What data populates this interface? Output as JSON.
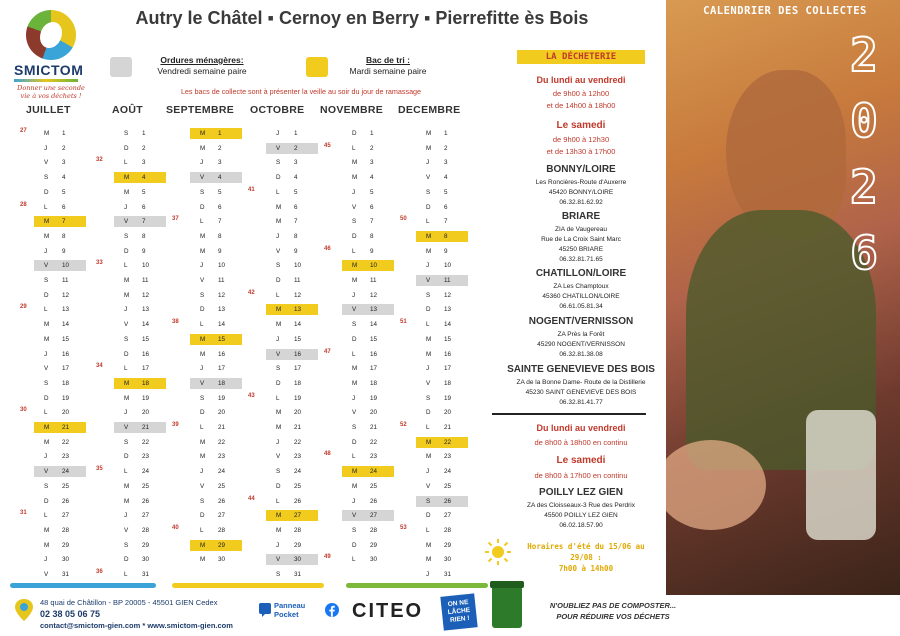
{
  "logo": {
    "name": "SMICTOM",
    "slogan": "Donner une seconde vie à vos déchets !"
  },
  "title": "Autry le Châtel  ▪  Cernoy en Berry  ▪  Pierrefitte ès Bois",
  "legend": {
    "om_title": "Ordures ménagères:",
    "om_day": "Vendredi semaine paire",
    "tri_title": "Bac de tri :",
    "tri_day": "Mardi semaine paire",
    "om_color": "#d5d5d5",
    "tri_color": "#f1cb1d"
  },
  "notice": "Les bacs de collecte sont à présenter la veille au soir du jour de ramassage",
  "months": [
    "JUILLET",
    "AOÛT",
    "SEPTEMBRE",
    "OCTOBRE",
    "NOVEMBRE",
    "DECEMBRE"
  ],
  "calendar": [
    {
      "days": [
        [
          "M",
          "1"
        ],
        [
          "J",
          "2"
        ],
        [
          "V",
          "3"
        ],
        [
          "S",
          "4"
        ],
        [
          "D",
          "5"
        ],
        [
          "L",
          "6"
        ],
        [
          "M",
          "7"
        ],
        [
          "M",
          "8"
        ],
        [
          "J",
          "9"
        ],
        [
          "V",
          "10"
        ],
        [
          "S",
          "11"
        ],
        [
          "D",
          "12"
        ],
        [
          "L",
          "13"
        ],
        [
          "M",
          "14"
        ],
        [
          "M",
          "15"
        ],
        [
          "J",
          "16"
        ],
        [
          "V",
          "17"
        ],
        [
          "S",
          "18"
        ],
        [
          "D",
          "19"
        ],
        [
          "L",
          "20"
        ],
        [
          "M",
          "21"
        ],
        [
          "M",
          "22"
        ],
        [
          "J",
          "23"
        ],
        [
          "V",
          "24"
        ],
        [
          "S",
          "25"
        ],
        [
          "D",
          "26"
        ],
        [
          "L",
          "27"
        ],
        [
          "M",
          "28"
        ],
        [
          "M",
          "29"
        ],
        [
          "J",
          "30"
        ],
        [
          "V",
          "31"
        ]
      ],
      "yellow": [
        "7",
        "21"
      ],
      "grey": [
        "10",
        "24"
      ],
      "weeks": [
        [
          "1",
          "27"
        ],
        [
          "6",
          "28"
        ],
        [
          "13",
          "29"
        ],
        [
          "20",
          "30"
        ],
        [
          "27",
          "31"
        ]
      ]
    },
    {
      "days": [
        [
          "S",
          "1"
        ],
        [
          "D",
          "2"
        ],
        [
          "L",
          "3"
        ],
        [
          "M",
          "4"
        ],
        [
          "M",
          "5"
        ],
        [
          "J",
          "6"
        ],
        [
          "V",
          "7"
        ],
        [
          "S",
          "8"
        ],
        [
          "D",
          "9"
        ],
        [
          "L",
          "10"
        ],
        [
          "M",
          "11"
        ],
        [
          "M",
          "12"
        ],
        [
          "J",
          "13"
        ],
        [
          "V",
          "14"
        ],
        [
          "S",
          "15"
        ],
        [
          "D",
          "16"
        ],
        [
          "L",
          "17"
        ],
        [
          "M",
          "18"
        ],
        [
          "M",
          "19"
        ],
        [
          "J",
          "20"
        ],
        [
          "V",
          "21"
        ],
        [
          "S",
          "22"
        ],
        [
          "D",
          "23"
        ],
        [
          "L",
          "24"
        ],
        [
          "M",
          "25"
        ],
        [
          "M",
          "26"
        ],
        [
          "J",
          "27"
        ],
        [
          "V",
          "28"
        ],
        [
          "S",
          "29"
        ],
        [
          "D",
          "30"
        ],
        [
          "L",
          "31"
        ]
      ],
      "yellow": [
        "4",
        "18"
      ],
      "grey": [
        "7",
        "21"
      ],
      "weeks": [
        [
          "3",
          "32"
        ],
        [
          "10",
          "33"
        ],
        [
          "17",
          "34"
        ],
        [
          "24",
          "35"
        ],
        [
          "31",
          "36"
        ]
      ]
    },
    {
      "days": [
        [
          "M",
          "1"
        ],
        [
          "M",
          "2"
        ],
        [
          "J",
          "3"
        ],
        [
          "V",
          "4"
        ],
        [
          "S",
          "5"
        ],
        [
          "D",
          "6"
        ],
        [
          "L",
          "7"
        ],
        [
          "M",
          "8"
        ],
        [
          "M",
          "9"
        ],
        [
          "J",
          "10"
        ],
        [
          "V",
          "11"
        ],
        [
          "S",
          "12"
        ],
        [
          "D",
          "13"
        ],
        [
          "L",
          "14"
        ],
        [
          "M",
          "15"
        ],
        [
          "M",
          "16"
        ],
        [
          "J",
          "17"
        ],
        [
          "V",
          "18"
        ],
        [
          "S",
          "19"
        ],
        [
          "D",
          "20"
        ],
        [
          "L",
          "21"
        ],
        [
          "M",
          "22"
        ],
        [
          "M",
          "23"
        ],
        [
          "J",
          "24"
        ],
        [
          "V",
          "25"
        ],
        [
          "S",
          "26"
        ],
        [
          "D",
          "27"
        ],
        [
          "L",
          "28"
        ],
        [
          "M",
          "29"
        ],
        [
          "M",
          "30"
        ]
      ],
      "yellow": [
        "1",
        "15",
        "29"
      ],
      "grey": [
        "4",
        "18"
      ],
      "weeks": [
        [
          "7",
          "37"
        ],
        [
          "14",
          "38"
        ],
        [
          "21",
          "39"
        ],
        [
          "28",
          "40"
        ]
      ]
    },
    {
      "days": [
        [
          "J",
          "1"
        ],
        [
          "V",
          "2"
        ],
        [
          "S",
          "3"
        ],
        [
          "D",
          "4"
        ],
        [
          "L",
          "5"
        ],
        [
          "M",
          "6"
        ],
        [
          "M",
          "7"
        ],
        [
          "J",
          "8"
        ],
        [
          "V",
          "9"
        ],
        [
          "S",
          "10"
        ],
        [
          "D",
          "11"
        ],
        [
          "L",
          "12"
        ],
        [
          "M",
          "13"
        ],
        [
          "M",
          "14"
        ],
        [
          "J",
          "15"
        ],
        [
          "V",
          "16"
        ],
        [
          "S",
          "17"
        ],
        [
          "D",
          "18"
        ],
        [
          "L",
          "19"
        ],
        [
          "M",
          "20"
        ],
        [
          "M",
          "21"
        ],
        [
          "J",
          "22"
        ],
        [
          "V",
          "23"
        ],
        [
          "S",
          "24"
        ],
        [
          "D",
          "25"
        ],
        [
          "L",
          "26"
        ],
        [
          "M",
          "27"
        ],
        [
          "M",
          "28"
        ],
        [
          "J",
          "29"
        ],
        [
          "V",
          "30"
        ],
        [
          "S",
          "31"
        ]
      ],
      "yellow": [
        "13",
        "27"
      ],
      "grey": [
        "2",
        "16",
        "30"
      ],
      "weeks": [
        [
          "5",
          "41"
        ],
        [
          "12",
          "42"
        ],
        [
          "19",
          "43"
        ],
        [
          "26",
          "44"
        ]
      ]
    },
    {
      "days": [
        [
          "D",
          "1"
        ],
        [
          "L",
          "2"
        ],
        [
          "M",
          "3"
        ],
        [
          "M",
          "4"
        ],
        [
          "J",
          "5"
        ],
        [
          "V",
          "6"
        ],
        [
          "S",
          "7"
        ],
        [
          "D",
          "8"
        ],
        [
          "L",
          "9"
        ],
        [
          "M",
          "10"
        ],
        [
          "M",
          "11"
        ],
        [
          "J",
          "12"
        ],
        [
          "V",
          "13"
        ],
        [
          "S",
          "14"
        ],
        [
          "D",
          "15"
        ],
        [
          "L",
          "16"
        ],
        [
          "M",
          "17"
        ],
        [
          "M",
          "18"
        ],
        [
          "J",
          "19"
        ],
        [
          "V",
          "20"
        ],
        [
          "S",
          "21"
        ],
        [
          "D",
          "22"
        ],
        [
          "L",
          "23"
        ],
        [
          "M",
          "24"
        ],
        [
          "M",
          "25"
        ],
        [
          "J",
          "26"
        ],
        [
          "V",
          "27"
        ],
        [
          "S",
          "28"
        ],
        [
          "D",
          "29"
        ],
        [
          "L",
          "30"
        ]
      ],
      "yellow": [
        "10",
        "24"
      ],
      "grey": [
        "13",
        "27"
      ],
      "weeks": [
        [
          "2",
          "45"
        ],
        [
          "9",
          "46"
        ],
        [
          "16",
          "47"
        ],
        [
          "23",
          "48"
        ],
        [
          "30",
          "49"
        ]
      ]
    },
    {
      "days": [
        [
          "M",
          "1"
        ],
        [
          "M",
          "2"
        ],
        [
          "J",
          "3"
        ],
        [
          "V",
          "4"
        ],
        [
          "S",
          "5"
        ],
        [
          "D",
          "6"
        ],
        [
          "L",
          "7"
        ],
        [
          "M",
          "8"
        ],
        [
          "M",
          "9"
        ],
        [
          "J",
          "10"
        ],
        [
          "V",
          "11"
        ],
        [
          "S",
          "12"
        ],
        [
          "D",
          "13"
        ],
        [
          "L",
          "14"
        ],
        [
          "M",
          "15"
        ],
        [
          "M",
          "16"
        ],
        [
          "J",
          "17"
        ],
        [
          "V",
          "18"
        ],
        [
          "S",
          "19"
        ],
        [
          "D",
          "20"
        ],
        [
          "L",
          "21"
        ],
        [
          "M",
          "22"
        ],
        [
          "M",
          "23"
        ],
        [
          "J",
          "24"
        ],
        [
          "V",
          "25"
        ],
        [
          "S",
          "26"
        ],
        [
          "D",
          "27"
        ],
        [
          "L",
          "28"
        ],
        [
          "M",
          "29"
        ],
        [
          "M",
          "30"
        ],
        [
          "J",
          "31"
        ]
      ],
      "yellow": [
        "8",
        "22"
      ],
      "grey": [
        "11",
        "26"
      ],
      "weeks": [
        [
          "7",
          "50"
        ],
        [
          "14",
          "51"
        ],
        [
          "21",
          "52"
        ],
        [
          "28",
          "53"
        ]
      ]
    }
  ],
  "dechetterie": {
    "tag": "LA DÉCHETERIE",
    "weekday": "Du lundi au vendredi",
    "weekday_hours_1": "de 9h00 à 12h00",
    "weekday_hours_2": "et de 14h00 à 18h00",
    "saturday": "Le samedi",
    "saturday_hours_1": "de 9h00 à 12h30",
    "saturday_hours_2": "et de 13h30 à 17h00",
    "sites": [
      {
        "name": "BONNY/LOIRE",
        "l1": "Les Roncières-Route d'Auxerre",
        "l2": "45420 BONNY/LOIRE",
        "l3": "06.32.81.62.92"
      },
      {
        "name": "BRIARE",
        "l1": "ZIA de Vaugereau",
        "l2": "Rue de La Croix Saint Marc",
        "l3": "45250 BRIARE",
        "l4": "06.32.81.71.65"
      },
      {
        "name": "CHATILLON/LOIRE",
        "l1": "ZA Les Champtoux",
        "l2": "45360 CHATILLON/LOIRE",
        "l3": "06.61.05.81.34"
      },
      {
        "name": "NOGENT/VERNISSON",
        "l1": "ZA Près la Forêt",
        "l2": "45290 NOGENT/VERNISSON",
        "l3": "06.32.81.38.08"
      },
      {
        "name": "SAINTE GENEVIEVE DES BOIS",
        "l1": "ZA de la Bonne Dame- Route de la Distillerie",
        "l2": "45230 SAINT GENEVIEVE DES BOIS",
        "l3": "06.32.81.41.77"
      }
    ],
    "poilly": {
      "weekday": "Du lundi au vendredi",
      "weekday_hours": "de 8h00 à 18h00 en continu",
      "saturday": "Le samedi",
      "saturday_hours": "de 8h00 à 17h00 en continu",
      "name": "POILLY LEZ GIEN",
      "l1": "ZA des Cloisseaux-3 Rue des Perdrix",
      "l2": "45500 POILLY LEZ GIEN",
      "l3": "06.02.18.57.90"
    },
    "summer_1": "Horaires d'été du 15/06 au 29/08 :",
    "summer_2": "7h00 à 14h00"
  },
  "photo": {
    "title": "CALENDRIER DES COLLECTES",
    "year_digits": [
      "2",
      "0",
      "2",
      "6"
    ]
  },
  "footer": {
    "address": "48 quai de Châtillon - BP 20005 - 45501 GIEN Cedex",
    "phone": "02 38 05 06 75",
    "contact": "contact@smictom-gien.com * www.smictom-gien.com",
    "panneau": "Panneau",
    "pocket": "Pocket",
    "citeo": "CITEO",
    "lache": "ON NE LÂCHE RIEN !",
    "compost_1": "N'OUBLIEZ PAS DE COMPOSTER...",
    "compost_2": "POUR RÉDUIRE VOS DÉCHETS"
  },
  "colors": {
    "yellow": "#f1cb1d",
    "grey": "#d5d5d5",
    "red": "#c0392b",
    "navy": "#1d3c6a"
  }
}
